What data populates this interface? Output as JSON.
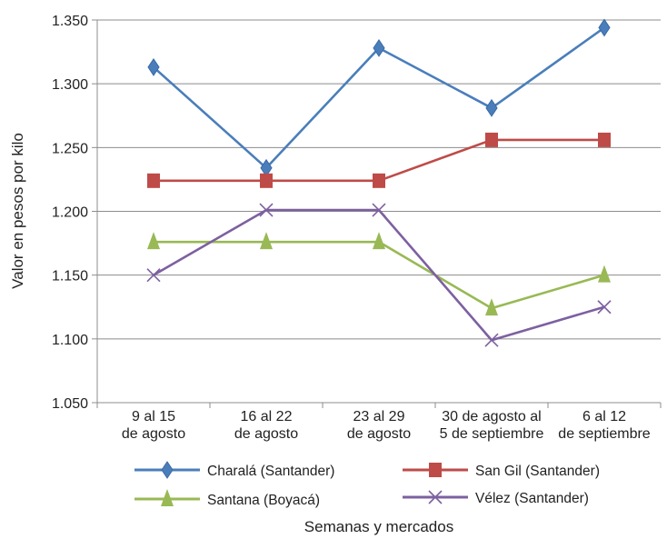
{
  "chart_data": {
    "type": "line",
    "xlabel": "Semanas y mercados",
    "ylabel": "Valor en pesos por kilo",
    "ylim": [
      1050,
      1350
    ],
    "yticks": [
      {
        "value": 1050,
        "label": "1.050"
      },
      {
        "value": 1100,
        "label": "1.100"
      },
      {
        "value": 1150,
        "label": "1.150"
      },
      {
        "value": 1200,
        "label": "1.200"
      },
      {
        "value": 1250,
        "label": "1.250"
      },
      {
        "value": 1300,
        "label": "1.300"
      },
      {
        "value": 1350,
        "label": "1.350"
      }
    ],
    "categories": [
      [
        "9 al 15",
        "de agosto"
      ],
      [
        "16 al 22",
        "de agosto"
      ],
      [
        "23 al 29",
        "de agosto"
      ],
      [
        "30 de agosto al",
        "5 de septiembre"
      ],
      [
        "6 al 12",
        "de septiembre"
      ]
    ],
    "grid": "horizontal",
    "legend_position": "bottom",
    "series": [
      {
        "name": "Charalá (Santander)",
        "color": "#4a7ebb",
        "marker": "diamond",
        "values": [
          1313,
          1234,
          1328,
          1281,
          1344
        ]
      },
      {
        "name": "San Gil (Santander)",
        "color": "#be4b48",
        "marker": "square",
        "values": [
          1224,
          1224,
          1224,
          1256,
          1256
        ]
      },
      {
        "name": "Santana (Boyacá)",
        "color": "#98b954",
        "marker": "triangle",
        "values": [
          1176,
          1176,
          1176,
          1124,
          1150
        ]
      },
      {
        "name": "Vélez (Santander)",
        "color": "#7d60a0",
        "marker": "x",
        "values": [
          1150,
          1201,
          1201,
          1099,
          1125
        ]
      }
    ]
  }
}
